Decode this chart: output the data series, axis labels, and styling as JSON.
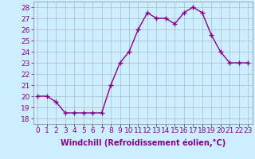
{
  "x": [
    0,
    1,
    2,
    3,
    4,
    5,
    6,
    7,
    8,
    9,
    10,
    11,
    12,
    13,
    14,
    15,
    16,
    17,
    18,
    19,
    20,
    21,
    22,
    23
  ],
  "y": [
    20.0,
    20.0,
    19.5,
    18.5,
    18.5,
    18.5,
    18.5,
    18.5,
    21.0,
    23.0,
    24.0,
    26.0,
    27.5,
    27.0,
    27.0,
    26.5,
    27.5,
    28.0,
    27.5,
    25.5,
    24.0,
    23.0,
    23.0,
    23.0
  ],
  "line_color": "#880088",
  "marker": "+",
  "marker_size": 4,
  "linewidth": 1.0,
  "xlabel": "Windchill (Refroidissement éolien,°C)",
  "xlabel_fontsize": 7,
  "ylabel_ticks": [
    18,
    19,
    20,
    21,
    22,
    23,
    24,
    25,
    26,
    27,
    28
  ],
  "xlim": [
    -0.5,
    23.5
  ],
  "ylim": [
    17.5,
    28.5
  ],
  "bg_color": "#cceeff",
  "grid_color": "#aabbcc",
  "tick_color": "#880088",
  "tick_fontsize": 6.5,
  "xtick_labels": [
    "0",
    "1",
    "2",
    "3",
    "4",
    "5",
    "6",
    "7",
    "8",
    "9",
    "10",
    "11",
    "12",
    "13",
    "14",
    "15",
    "16",
    "17",
    "18",
    "19",
    "20",
    "21",
    "22",
    "23"
  ]
}
